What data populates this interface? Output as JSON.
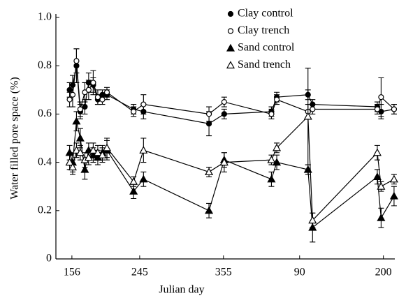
{
  "chart_data": {
    "type": "line",
    "xlabel": "Julian day",
    "ylabel": "Water filled pore space (%)",
    "x": [
      153,
      157,
      162,
      167,
      173,
      178,
      184,
      190,
      196,
      202,
      237,
      250,
      336,
      356,
      418,
      425,
      466,
      472,
      557,
      562,
      579
    ],
    "xlim": [
      135,
      580
    ],
    "xticks": [
      156,
      245,
      355,
      {
        "value": 455,
        "label": "90"
      },
      {
        "value": 565,
        "label": "200"
      }
    ],
    "ylim": [
      0,
      1
    ],
    "yticks": [
      0,
      0.2,
      0.4,
      0.6,
      0.8,
      {
        "value": 1,
        "label": "1.0"
      }
    ],
    "legend": "top-right",
    "series": [
      {
        "name": "Clay control",
        "color": "#000000",
        "marker": "circle",
        "filled": true,
        "values": [
          0.7,
          0.72,
          0.8,
          0.61,
          0.63,
          0.73,
          0.72,
          0.66,
          0.68,
          0.68,
          0.62,
          0.61,
          0.56,
          0.6,
          0.61,
          0.67,
          0.68,
          0.64,
          0.63,
          0.61,
          0.62
        ],
        "errors": [
          0.03,
          0.04,
          0.07,
          0.03,
          0.03,
          0.04,
          0.03,
          0.02,
          0.02,
          0.02,
          0.02,
          0.03,
          0.05,
          0.02,
          0.02,
          0.02,
          0.02,
          0.02,
          0.02,
          0.03,
          0.02
        ]
      },
      {
        "name": "Clay trench",
        "color": "#000000",
        "marker": "circle",
        "filled": false,
        "values": [
          0.66,
          0.68,
          0.82,
          0.62,
          0.69,
          0.7,
          0.73,
          0.67,
          0.66,
          0.69,
          0.61,
          0.64,
          0.6,
          0.65,
          0.6,
          0.66,
          0.61,
          0.62,
          0.62,
          0.67,
          0.62
        ],
        "errors": [
          0.03,
          0.05,
          0.05,
          0.03,
          0.04,
          0.04,
          0.05,
          0.03,
          0.02,
          0.02,
          0.02,
          0.04,
          0.03,
          0.02,
          0.02,
          0.02,
          0.03,
          0.02,
          0.02,
          0.08,
          0.02
        ]
      },
      {
        "name": "Sand control",
        "color": "#000000",
        "marker": "triangle",
        "filled": true,
        "values": [
          0.44,
          0.4,
          0.57,
          0.5,
          0.37,
          0.45,
          0.43,
          0.42,
          0.44,
          0.45,
          0.28,
          0.33,
          0.2,
          0.41,
          0.33,
          0.4,
          0.37,
          0.13,
          0.34,
          0.17,
          0.26
        ],
        "errors": [
          0.03,
          0.04,
          0.04,
          0.04,
          0.04,
          0.03,
          0.03,
          0.03,
          0.03,
          0.04,
          0.03,
          0.03,
          0.03,
          0.03,
          0.03,
          0.03,
          0.02,
          0.06,
          0.03,
          0.04,
          0.04
        ]
      },
      {
        "name": "Sand trench",
        "color": "#000000",
        "marker": "triangle",
        "filled": false,
        "values": [
          0.4,
          0.38,
          0.45,
          0.44,
          0.41,
          0.42,
          0.45,
          0.44,
          0.43,
          0.46,
          0.32,
          0.45,
          0.36,
          0.4,
          0.41,
          0.46,
          0.59,
          0.16,
          0.44,
          0.3,
          0.33
        ],
        "errors": [
          0.03,
          0.03,
          0.03,
          0.03,
          0.03,
          0.03,
          0.03,
          0.03,
          0.03,
          0.04,
          0.02,
          0.05,
          0.02,
          0.04,
          0.02,
          0.02,
          0.2,
          0.03,
          0.03,
          0.02,
          0.02
        ]
      }
    ]
  }
}
